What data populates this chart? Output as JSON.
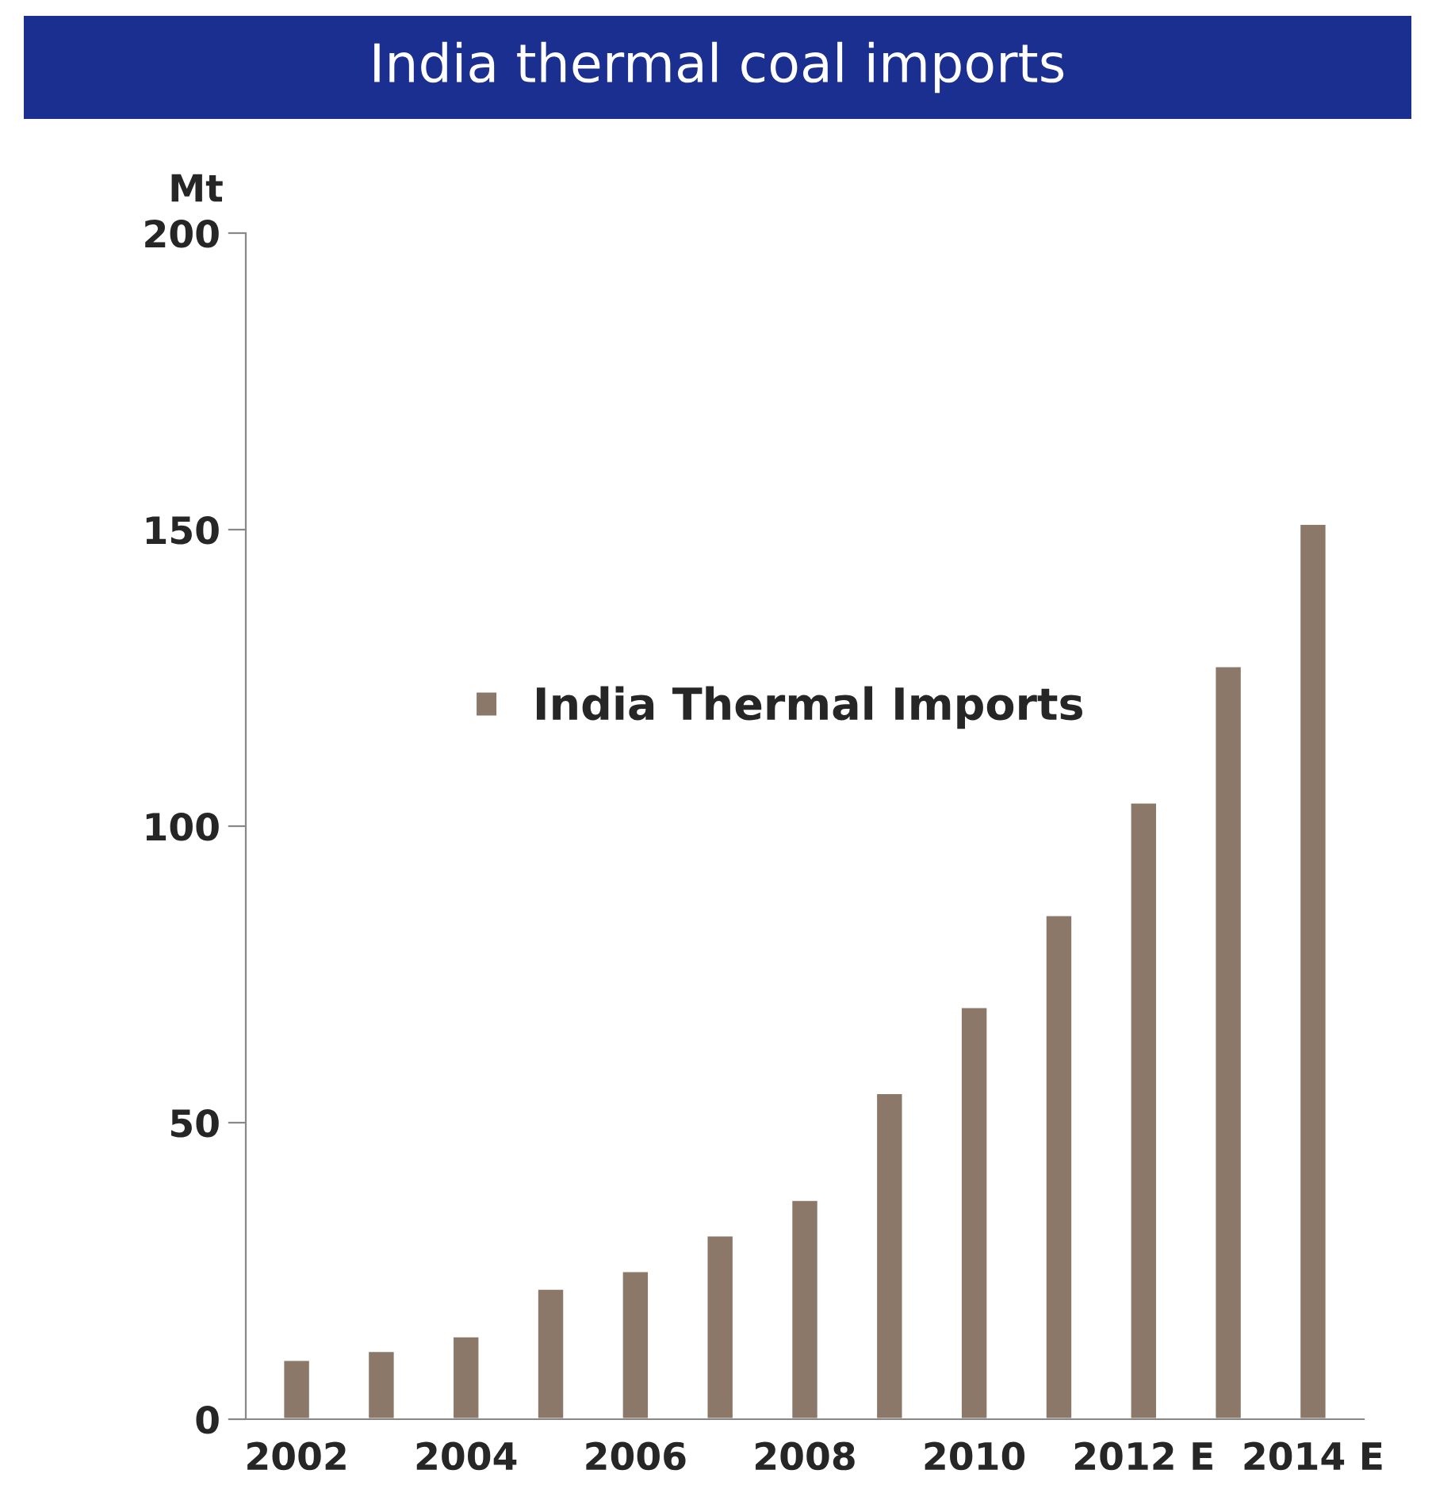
{
  "chart_data": {
    "type": "bar",
    "title": "India thermal coal imports",
    "ylabel": "Mt",
    "categories": [
      "2002",
      null,
      "2004",
      null,
      "2006",
      null,
      "2008",
      null,
      "2010",
      null,
      "2012 E",
      null,
      "2014 E"
    ],
    "series": [
      {
        "name": "India Thermal Imports",
        "color": "#8b7868",
        "values": [
          10,
          11.5,
          14,
          22,
          25,
          31,
          37,
          55,
          69.5,
          85,
          104,
          127,
          151
        ]
      }
    ],
    "ylim": [
      0,
      200
    ],
    "yticks": [
      0,
      50,
      100,
      150,
      200
    ],
    "grid": false,
    "legend": "left"
  }
}
